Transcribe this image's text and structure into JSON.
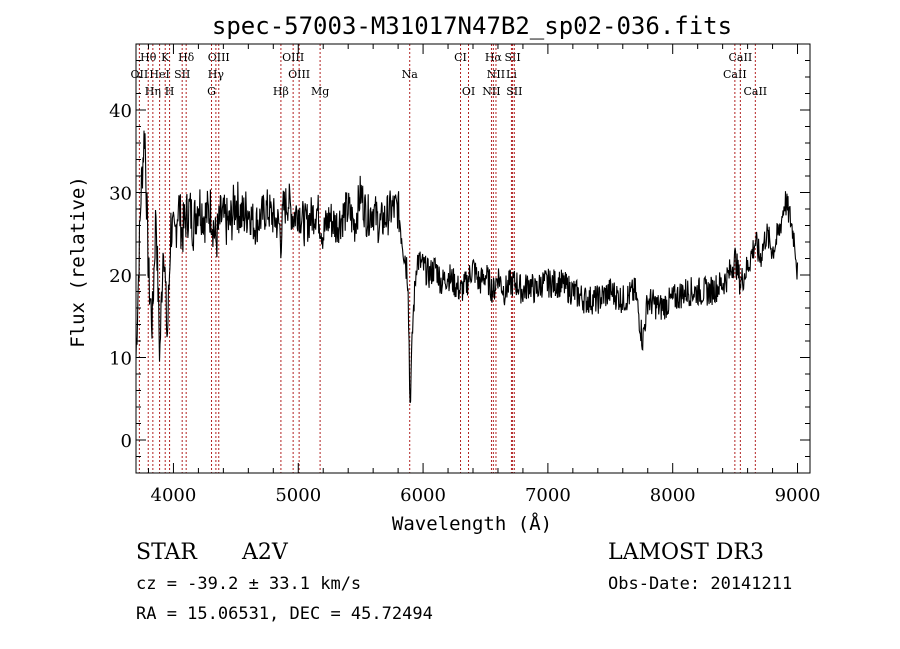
{
  "chart_data": {
    "type": "line",
    "title": "spec-57003-M31017N47B2_sp02-036.fits",
    "xlabel": "Wavelength (Å)",
    "ylabel": "Flux (relative)",
    "xlim": [
      3700,
      9100
    ],
    "ylim": [
      -4,
      48
    ],
    "x_ticks": [
      4000,
      5000,
      6000,
      7000,
      8000,
      9000
    ],
    "x_tick_labels": [
      "4000",
      "5000",
      "6000",
      "7000",
      "8000",
      "9000"
    ],
    "y_ticks": [
      0,
      10,
      20,
      30,
      40
    ],
    "y_tick_labels": [
      "0",
      "10",
      "20",
      "30",
      "40"
    ],
    "grid": false,
    "series": [
      {
        "name": "flux",
        "x": [
          3700,
          3740,
          3770,
          3800,
          3830,
          3860,
          3890,
          3920,
          3950,
          3980,
          4010,
          4040,
          4070,
          4100,
          4130,
          4160,
          4200,
          4250,
          4300,
          4340,
          4380,
          4450,
          4500,
          4550,
          4600,
          4650,
          4700,
          4750,
          4800,
          4850,
          4861,
          4880,
          4920,
          4960,
          5000,
          5050,
          5100,
          5150,
          5200,
          5250,
          5300,
          5350,
          5400,
          5450,
          5500,
          5550,
          5600,
          5650,
          5700,
          5750,
          5800,
          5850,
          5880,
          5895,
          5920,
          5950,
          6000,
          6050,
          6100,
          6150,
          6200,
          6250,
          6300,
          6350,
          6400,
          6450,
          6500,
          6563,
          6600,
          6650,
          6700,
          6750,
          6800,
          6850,
          6900,
          6950,
          7000,
          7100,
          7200,
          7300,
          7400,
          7500,
          7600,
          7700,
          7760,
          7800,
          7900,
          8000,
          8100,
          8200,
          8300,
          8400,
          8450,
          8500,
          8542,
          8600,
          8662,
          8700,
          8750,
          8800,
          8850,
          8900,
          8940,
          8980,
          9000
        ],
        "values": [
          10,
          30,
          38,
          20,
          14,
          28,
          10,
          25,
          12,
          26,
          24,
          29,
          25,
          27,
          28,
          26,
          29,
          27,
          28,
          24,
          27,
          26,
          29,
          27,
          28,
          26,
          27,
          28,
          27,
          26,
          24,
          28,
          29,
          27,
          28,
          26,
          27,
          28,
          25,
          27,
          26,
          27,
          28,
          26,
          30,
          27,
          28,
          26,
          27,
          28,
          28,
          23,
          20,
          4,
          15,
          22,
          21,
          20,
          21,
          19,
          20,
          19,
          18,
          19,
          21,
          19,
          20,
          18,
          20,
          18,
          19,
          19,
          18,
          19,
          18,
          19,
          19,
          19,
          18,
          17,
          17,
          18,
          17,
          18,
          12,
          17,
          16,
          17,
          18,
          18,
          18,
          19,
          20,
          22,
          19,
          21,
          24,
          22,
          25,
          23,
          25,
          29,
          27,
          24,
          20
        ]
      }
    ],
    "line_markers": [
      {
        "label": "Hθ",
        "x": 3798,
        "row": 1
      },
      {
        "label": "K",
        "x": 3934,
        "row": 1
      },
      {
        "label": "Hδ",
        "x": 4102,
        "row": 1
      },
      {
        "label": "OIII",
        "x": 4363,
        "row": 1
      },
      {
        "label": "OIII",
        "x": 4959,
        "row": 1
      },
      {
        "label": "CI",
        "x": 6300,
        "row": 1
      },
      {
        "label": "Hα",
        "x": 6563,
        "row": 1
      },
      {
        "label": "SII",
        "x": 6717,
        "row": 1
      },
      {
        "label": "CaII",
        "x": 8542,
        "row": 1
      },
      {
        "label": "OII",
        "x": 3727,
        "row": 2
      },
      {
        "label": "HeI",
        "x": 3889,
        "row": 2
      },
      {
        "label": "SII",
        "x": 4070,
        "row": 2
      },
      {
        "label": "Hγ",
        "x": 4340,
        "row": 2
      },
      {
        "label": "OIII",
        "x": 5007,
        "row": 2
      },
      {
        "label": "Na",
        "x": 5893,
        "row": 2
      },
      {
        "label": "NII",
        "x": 6584,
        "row": 2
      },
      {
        "label": "Li",
        "x": 6708,
        "row": 2
      },
      {
        "label": "CaII",
        "x": 8498,
        "row": 2
      },
      {
        "label": "Hη",
        "x": 3835,
        "row": 3
      },
      {
        "label": "H",
        "x": 3969,
        "row": 3
      },
      {
        "label": "G",
        "x": 4305,
        "row": 3
      },
      {
        "label": "Hβ",
        "x": 4861,
        "row": 3
      },
      {
        "label": "Mg",
        "x": 5175,
        "row": 3
      },
      {
        "label": "OI",
        "x": 6364,
        "row": 3
      },
      {
        "label": "NII",
        "x": 6548,
        "row": 3
      },
      {
        "label": "SII",
        "x": 6731,
        "row": 3
      },
      {
        "label": "CaII",
        "x": 8662,
        "row": 3
      }
    ]
  },
  "info": {
    "object_type": "STAR",
    "subclass": "A2V",
    "survey": "LAMOST DR3",
    "cz_line": "cz = -39.2 ± 33.1 km/s",
    "obs_date": "Obs-Date: 20141211",
    "coords": "RA =  15.06531, DEC =  45.72494"
  },
  "colors": {
    "line": "#000000",
    "marker": "#b22222",
    "axes": "#000000"
  }
}
